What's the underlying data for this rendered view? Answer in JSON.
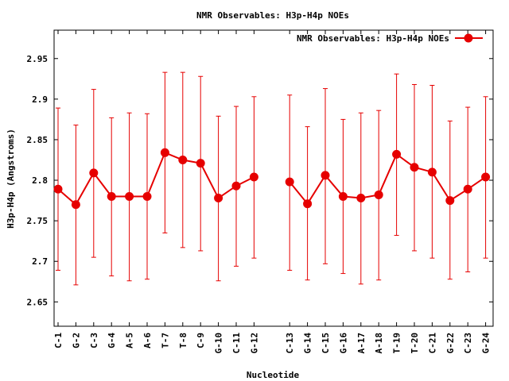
{
  "chart_data": {
    "type": "line",
    "title": "NMR Observables: H3p-H4p NOEs",
    "xlabel": "Nucleotide",
    "ylabel": "H3p-H4p (Angstroms)",
    "ylim": [
      2.62,
      2.985
    ],
    "y_ticks": [
      2.65,
      2.7,
      2.75,
      2.8,
      2.85,
      2.9,
      2.95
    ],
    "y_tick_labels": [
      "2.65",
      "2.7",
      "2.75",
      "2.8",
      "2.85",
      "2.9",
      "2.95"
    ],
    "grid": false,
    "legend_position": "top-right",
    "series": [
      {
        "name": "NMR Observables: H3p-H4p NOEs",
        "color": "#e60000",
        "segments": [
          {
            "categories": [
              "C-1",
              "G-2",
              "C-3",
              "G-4",
              "A-5",
              "A-6",
              "T-7",
              "T-8",
              "C-9",
              "G-10",
              "C-11",
              "G-12"
            ],
            "values": [
              2.789,
              2.77,
              2.809,
              2.78,
              2.78,
              2.78,
              2.834,
              2.825,
              2.821,
              2.778,
              2.793,
              2.804
            ],
            "err_low": [
              2.689,
              2.671,
              2.705,
              2.682,
              2.676,
              2.678,
              2.735,
              2.717,
              2.713,
              2.676,
              2.694,
              2.704
            ],
            "err_high": [
              2.889,
              2.868,
              2.912,
              2.877,
              2.883,
              2.882,
              2.933,
              2.933,
              2.928,
              2.879,
              2.891,
              2.903
            ]
          },
          {
            "categories": [
              "C-13",
              "G-14",
              "C-15",
              "G-16",
              "A-17",
              "A-18",
              "T-19",
              "T-20",
              "C-21",
              "G-22",
              "C-23",
              "G-24"
            ],
            "values": [
              2.798,
              2.771,
              2.806,
              2.78,
              2.778,
              2.782,
              2.832,
              2.816,
              2.81,
              2.775,
              2.789,
              2.804
            ],
            "err_low": [
              2.689,
              2.677,
              2.697,
              2.685,
              2.672,
              2.677,
              2.732,
              2.713,
              2.704,
              2.678,
              2.687,
              2.704
            ],
            "err_high": [
              2.905,
              2.866,
              2.913,
              2.875,
              2.883,
              2.886,
              2.931,
              2.918,
              2.917,
              2.873,
              2.89,
              2.903
            ]
          }
        ]
      }
    ]
  }
}
